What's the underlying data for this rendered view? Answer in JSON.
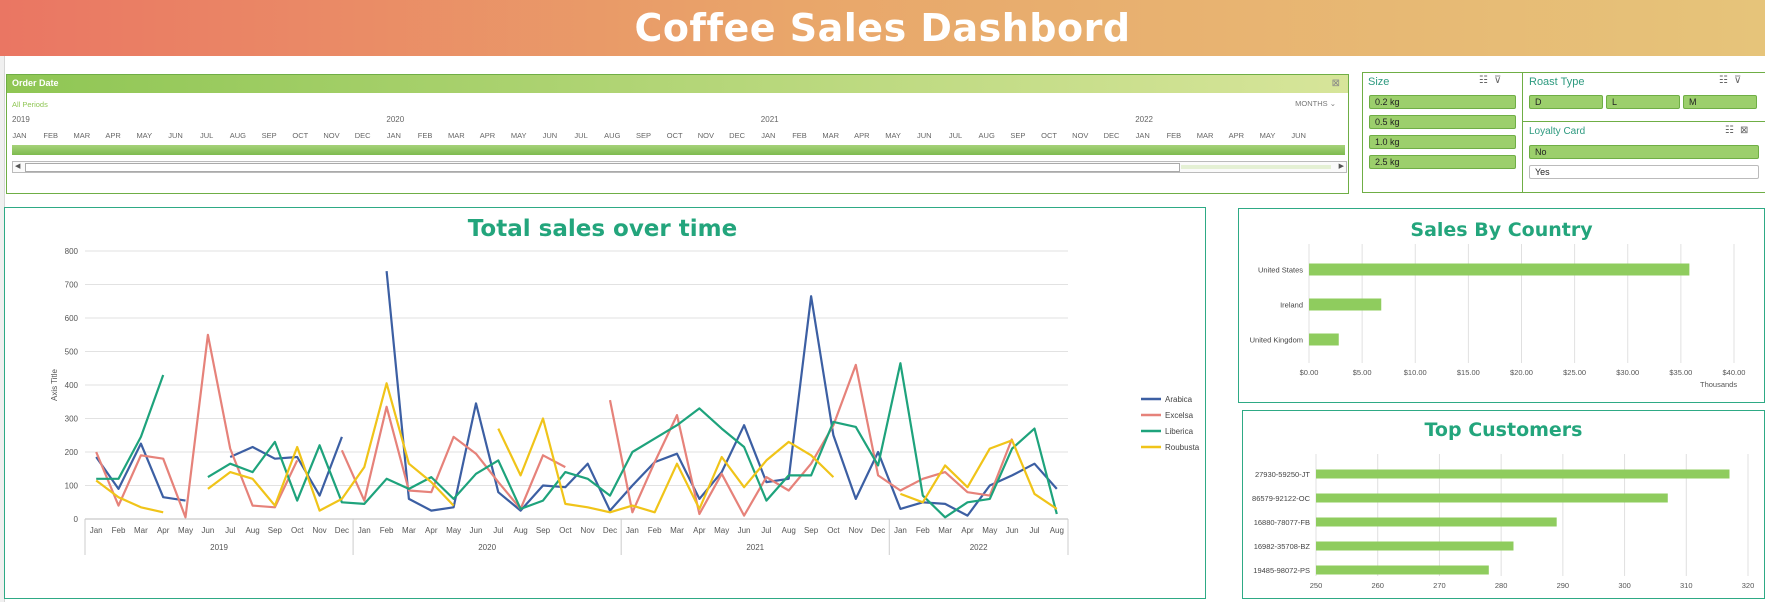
{
  "dashboard": {
    "title": "Coffee Sales Dashbord"
  },
  "timeline": {
    "title": "Order Date",
    "period": "All Periods",
    "level": "MONTHS ⌄",
    "years": [
      "2019",
      "2020",
      "2021",
      "2022"
    ],
    "months": [
      "JAN",
      "FEB",
      "MAR",
      "APR",
      "MAY",
      "JUN",
      "JUL",
      "AUG",
      "SEP",
      "OCT",
      "NOV",
      "DEC",
      "JAN",
      "FEB",
      "MAR",
      "APR",
      "MAY",
      "JUN",
      "JUL",
      "AUG",
      "SEP",
      "OCT",
      "NOV",
      "DEC",
      "JAN",
      "FEB",
      "MAR",
      "APR",
      "MAY",
      "JUN",
      "JUL",
      "AUG",
      "SEP",
      "OCT",
      "NOV",
      "DEC",
      "JAN",
      "FEB",
      "MAR",
      "APR",
      "MAY",
      "JUN"
    ]
  },
  "slicers": {
    "size": {
      "title": "Size",
      "items": [
        "0.2 kg",
        "0.5 kg",
        "1.0 kg",
        "2.5 kg"
      ]
    },
    "roast": {
      "title": "Roast Type",
      "items": [
        "D",
        "L",
        "M"
      ]
    },
    "loyalty": {
      "title": "Loyalty Card",
      "items": [
        {
          "label": "No",
          "selected": true
        },
        {
          "label": "Yes",
          "selected": false
        }
      ]
    }
  },
  "colors": {
    "accent": "#23a57c",
    "bar": "#8fcc5e",
    "arabica": "#3c5fa3",
    "excelsa": "#e6827a",
    "liberica": "#1ea37c",
    "robusta": "#f0c419"
  },
  "chart_data": [
    {
      "type": "line",
      "title": "Total sales over time",
      "ylabel": "Axis Title",
      "ylim": [
        0,
        800
      ],
      "yticks": [
        0,
        100,
        200,
        300,
        400,
        500,
        600,
        700,
        800
      ],
      "x_months": [
        "Jan",
        "Feb",
        "Mar",
        "Apr",
        "May",
        "Jun",
        "Jul",
        "Aug",
        "Sep",
        "Oct",
        "Nov",
        "Dec",
        "Jan",
        "Feb",
        "Mar",
        "Apr",
        "May",
        "Jun",
        "Jul",
        "Aug",
        "Sep",
        "Oct",
        "Nov",
        "Dec",
        "Jan",
        "Feb",
        "Mar",
        "Apr",
        "May",
        "Jun",
        "Jul",
        "Aug",
        "Sep",
        "Oct",
        "Nov",
        "Dec",
        "Jan",
        "Feb",
        "Mar",
        "Apr",
        "May",
        "Jun",
        "Jul",
        "Aug"
      ],
      "x_years": [
        "2019",
        "2020",
        "2021",
        "2022"
      ],
      "series": [
        {
          "name": "Arabica",
          "color": "#3c5fa3",
          "values": [
            185,
            90,
            225,
            65,
            55,
            null,
            185,
            215,
            180,
            185,
            70,
            245,
            null,
            740,
            60,
            25,
            35,
            345,
            80,
            25,
            100,
            95,
            165,
            25,
            100,
            170,
            195,
            60,
            140,
            280,
            110,
            120,
            665,
            250,
            60,
            200,
            30,
            50,
            45,
            10,
            100,
            130,
            165,
            90
          ]
        },
        {
          "name": "Excelsa",
          "color": "#e6827a",
          "values": [
            200,
            40,
            190,
            180,
            5,
            550,
            210,
            40,
            35,
            175,
            null,
            205,
            55,
            335,
            85,
            80,
            245,
            195,
            110,
            30,
            190,
            155,
            null,
            355,
            20,
            170,
            310,
            15,
            135,
            10,
            125,
            85,
            165,
            280,
            460,
            130,
            85,
            120,
            140,
            80,
            70,
            240,
            null,
            null
          ]
        },
        {
          "name": "Liberica",
          "color": "#1ea37c",
          "values": [
            120,
            120,
            245,
            430,
            null,
            125,
            165,
            140,
            230,
            55,
            220,
            50,
            45,
            120,
            90,
            125,
            60,
            135,
            175,
            30,
            55,
            140,
            120,
            70,
            200,
            240,
            280,
            330,
            270,
            215,
            55,
            130,
            130,
            290,
            275,
            160,
            465,
            70,
            5,
            50,
            60,
            210,
            270,
            15
          ]
        },
        {
          "name": "Roubusta",
          "color": "#f0c419",
          "values": [
            115,
            65,
            35,
            20,
            null,
            90,
            140,
            120,
            40,
            215,
            25,
            60,
            155,
            405,
            165,
            110,
            40,
            null,
            270,
            130,
            300,
            45,
            35,
            20,
            40,
            20,
            165,
            30,
            185,
            95,
            175,
            230,
            190,
            125,
            null,
            null,
            75,
            50,
            160,
            95,
            210,
            235,
            75,
            30
          ]
        }
      ]
    },
    {
      "type": "bar",
      "title": "Sales By Country",
      "categories": [
        "United States",
        "Ireland",
        "United Kingdom"
      ],
      "values": [
        35.8,
        6.8,
        2.8
      ],
      "xlim": [
        0,
        40
      ],
      "xticks": [
        "$0.00",
        "$5.00",
        "$10.00",
        "$15.00",
        "$20.00",
        "$25.00",
        "$30.00",
        "$35.00",
        "$40.00"
      ],
      "unit_label": "Thousands"
    },
    {
      "type": "bar",
      "title": "Top Customers",
      "categories": [
        "27930-59250-JT",
        "86579-92122-OC",
        "16880-78077-FB",
        "16982-35708-BZ",
        "19485-98072-PS"
      ],
      "values": [
        317,
        307,
        289,
        282,
        278
      ],
      "xlim": [
        250,
        320
      ],
      "xticks": [
        "250",
        "260",
        "270",
        "280",
        "290",
        "300",
        "310",
        "320"
      ]
    }
  ]
}
